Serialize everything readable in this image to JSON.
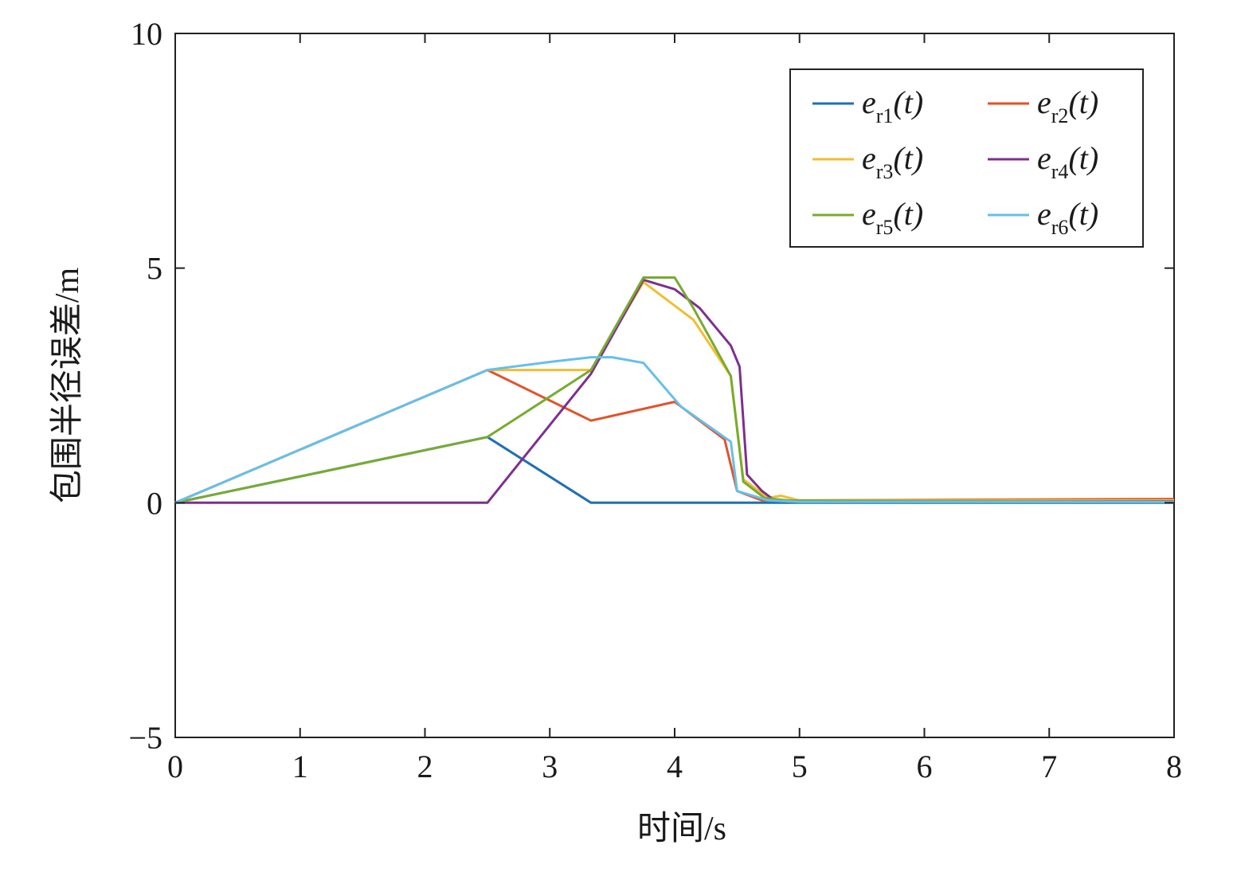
{
  "chart_data": {
    "type": "line",
    "title": "",
    "xlabel": "时间/s",
    "ylabel": "包围半径误差/m",
    "xlim": [
      0,
      8
    ],
    "ylim": [
      -5,
      10
    ],
    "xticks": [
      0,
      1,
      2,
      3,
      4,
      5,
      6,
      7,
      8
    ],
    "yticks": [
      -5,
      0,
      5,
      10
    ],
    "xtick_labels": [
      "0",
      "1",
      "2",
      "3",
      "4",
      "5",
      "6",
      "7",
      "8"
    ],
    "ytick_labels": [
      "−5",
      "0",
      "5",
      "10"
    ],
    "grid": false,
    "legend_position": "top-right",
    "legend_columns": 2,
    "series": [
      {
        "name": "e_r1(t)",
        "label_main": "e",
        "label_sub": "r1",
        "label_arg": "(t)",
        "color": "#1f6fb5",
        "points": [
          [
            0,
            0
          ],
          [
            2.5,
            1.4
          ],
          [
            3.33,
            0
          ],
          [
            4.0,
            0
          ],
          [
            4.8,
            0
          ],
          [
            8,
            0
          ]
        ]
      },
      {
        "name": "e_r2(t)",
        "label_main": "e",
        "label_sub": "r2",
        "label_arg": "(t)",
        "color": "#e2522a",
        "points": [
          [
            0,
            0
          ],
          [
            2.5,
            2.83
          ],
          [
            3.33,
            1.75
          ],
          [
            4.0,
            2.15
          ],
          [
            4.4,
            1.35
          ],
          [
            4.5,
            0.25
          ],
          [
            4.7,
            0.05
          ],
          [
            5.0,
            0.05
          ],
          [
            8,
            0.08
          ]
        ]
      },
      {
        "name": "e_r3(t)",
        "label_main": "e",
        "label_sub": "r3",
        "label_arg": "(t)",
        "color": "#f2be30",
        "points": [
          [
            0,
            0
          ],
          [
            2.5,
            2.83
          ],
          [
            3.33,
            2.83
          ],
          [
            3.75,
            4.7
          ],
          [
            4.15,
            3.9
          ],
          [
            4.45,
            2.7
          ],
          [
            4.55,
            0.5
          ],
          [
            4.75,
            0.1
          ],
          [
            4.85,
            0.15
          ],
          [
            5.0,
            0.05
          ],
          [
            8,
            0.05
          ]
        ]
      },
      {
        "name": "e_r4(t)",
        "label_main": "e",
        "label_sub": "r4",
        "label_arg": "(t)",
        "color": "#7e2f8e",
        "points": [
          [
            0,
            0
          ],
          [
            2.5,
            0
          ],
          [
            3.33,
            2.75
          ],
          [
            3.75,
            4.75
          ],
          [
            4.0,
            4.55
          ],
          [
            4.2,
            4.15
          ],
          [
            4.45,
            3.35
          ],
          [
            4.52,
            2.9
          ],
          [
            4.58,
            0.6
          ],
          [
            4.7,
            0.25
          ],
          [
            4.8,
            0.05
          ],
          [
            5.0,
            0.03
          ],
          [
            8,
            0.03
          ]
        ]
      },
      {
        "name": "e_r5(t)",
        "label_main": "e",
        "label_sub": "r5",
        "label_arg": "(t)",
        "color": "#77ab30",
        "points": [
          [
            0,
            0
          ],
          [
            2.5,
            1.4
          ],
          [
            3.33,
            2.83
          ],
          [
            3.75,
            4.8
          ],
          [
            4.0,
            4.8
          ],
          [
            4.15,
            4.15
          ],
          [
            4.45,
            2.7
          ],
          [
            4.55,
            0.45
          ],
          [
            4.72,
            0.1
          ],
          [
            4.9,
            0.05
          ],
          [
            8,
            0.02
          ]
        ]
      },
      {
        "name": "e_r6(t)",
        "label_main": "e",
        "label_sub": "r6",
        "label_arg": "(t)",
        "color": "#66bfea",
        "points": [
          [
            0,
            0
          ],
          [
            2.5,
            2.83
          ],
          [
            3.0,
            3.0
          ],
          [
            3.33,
            3.1
          ],
          [
            3.5,
            3.1
          ],
          [
            3.75,
            2.98
          ],
          [
            4.05,
            2.05
          ],
          [
            4.45,
            1.3
          ],
          [
            4.5,
            0.25
          ],
          [
            4.75,
            0.05
          ],
          [
            5.0,
            0.02
          ],
          [
            8,
            0.02
          ]
        ]
      }
    ]
  }
}
